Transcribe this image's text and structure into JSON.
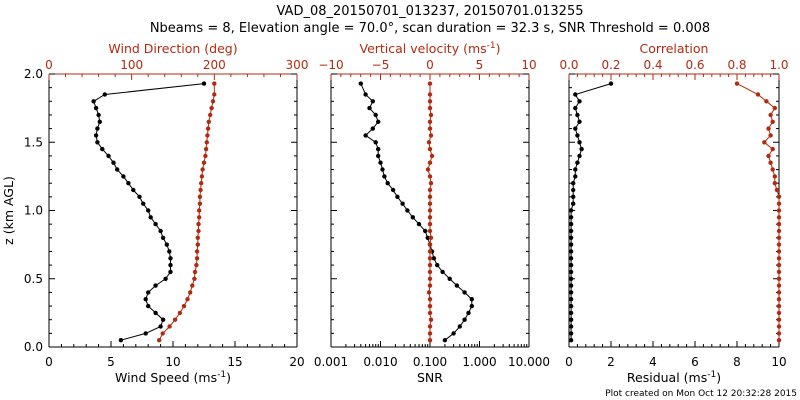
{
  "title_lines": [
    "VAD_08_20150701_013237, 20150701.013255",
    "Nbeams = 8, Elevation angle = 70.0°, scan duration = 32.3 s, SNR Threshold = 0.008"
  ],
  "footer": "Plot created on Mon Oct 12 20:32:28 2015",
  "colors": {
    "black": "#000000",
    "red": "#b22a10"
  },
  "chart_data": [
    {
      "type": "line",
      "ylabel": "z (km AGL)",
      "ylim": [
        0,
        2.0
      ],
      "yticks": [
        "0.0",
        "0.5",
        "1.0",
        "1.5",
        "2.0"
      ],
      "bottom_axis": {
        "label": "Wind Speed (ms",
        "label_sup": "-1",
        "label_end": ")",
        "range": [
          0,
          20
        ],
        "ticks": [
          "0",
          "5",
          "10",
          "15",
          "20"
        ]
      },
      "top_axis": {
        "label": "Wind Direction (deg)",
        "range": [
          0,
          360
        ],
        "ticks": [
          "0",
          "100",
          "200",
          "300"
        ]
      },
      "series": [
        {
          "axis": "bottom",
          "color": "black",
          "z": [
            0.05,
            0.1,
            0.15,
            0.2,
            0.25,
            0.3,
            0.35,
            0.4,
            0.45,
            0.5,
            0.55,
            0.6,
            0.65,
            0.7,
            0.75,
            0.8,
            0.85,
            0.9,
            0.95,
            1.0,
            1.05,
            1.1,
            1.15,
            1.2,
            1.25,
            1.3,
            1.35,
            1.4,
            1.45,
            1.5,
            1.55,
            1.6,
            1.65,
            1.7,
            1.75,
            1.8,
            1.85,
            1.93
          ],
          "values": [
            5.8,
            7.8,
            9.0,
            9.2,
            8.6,
            8.0,
            7.8,
            8.0,
            8.6,
            9.4,
            9.8,
            9.8,
            9.8,
            9.7,
            9.5,
            9.2,
            9.0,
            8.6,
            8.2,
            8.0,
            7.6,
            7.3,
            6.8,
            6.4,
            6.0,
            5.5,
            5.2,
            4.8,
            4.3,
            3.9,
            3.8,
            3.9,
            4.1,
            4.0,
            3.8,
            3.6,
            4.5,
            12.5
          ]
        },
        {
          "axis": "top",
          "color": "red",
          "z": [
            0.05,
            0.1,
            0.15,
            0.2,
            0.25,
            0.3,
            0.35,
            0.4,
            0.45,
            0.5,
            0.55,
            0.6,
            0.65,
            0.7,
            0.75,
            0.8,
            0.85,
            0.9,
            0.95,
            1.0,
            1.05,
            1.1,
            1.15,
            1.2,
            1.25,
            1.3,
            1.35,
            1.4,
            1.45,
            1.5,
            1.55,
            1.6,
            1.65,
            1.7,
            1.75,
            1.8,
            1.85,
            1.93
          ],
          "values": [
            160,
            165,
            175,
            183,
            190,
            196,
            201,
            205,
            208,
            211,
            212,
            214,
            215,
            215,
            216,
            216,
            217,
            217,
            218,
            218,
            219,
            219,
            220,
            221,
            222,
            223,
            225,
            227,
            228,
            229,
            230,
            231,
            232,
            234,
            236,
            238,
            240,
            240
          ]
        }
      ]
    },
    {
      "type": "line",
      "ylim": [
        0,
        2.0
      ],
      "bottom_axis": {
        "label": "SNR",
        "scale": "log",
        "range": [
          0.001,
          10
        ],
        "ticks": [
          "0.001",
          "0.010",
          "0.100",
          "1.000",
          "10.000"
        ],
        "tick_values": [
          0.001,
          0.01,
          0.1,
          1,
          10
        ]
      },
      "top_axis": {
        "label": "Vertical velocity (ms",
        "label_sup": "-1",
        "label_end": ")",
        "range": [
          -10,
          10
        ],
        "ticks": [
          "−10",
          "−5",
          "0",
          "5",
          "10"
        ],
        "tick_values": [
          -10,
          -5,
          0,
          5,
          10
        ]
      },
      "series": [
        {
          "axis": "bottom",
          "color": "black",
          "z": [
            0.05,
            0.1,
            0.15,
            0.2,
            0.25,
            0.3,
            0.35,
            0.4,
            0.45,
            0.5,
            0.55,
            0.6,
            0.65,
            0.7,
            0.75,
            0.8,
            0.85,
            0.9,
            0.95,
            1.0,
            1.05,
            1.1,
            1.15,
            1.2,
            1.25,
            1.3,
            1.35,
            1.4,
            1.45,
            1.5,
            1.55,
            1.6,
            1.65,
            1.7,
            1.75,
            1.8,
            1.85,
            1.93
          ],
          "values": [
            0.2,
            0.3,
            0.4,
            0.5,
            0.6,
            0.7,
            0.7,
            0.5,
            0.35,
            0.25,
            0.18,
            0.14,
            0.12,
            0.11,
            0.1,
            0.09,
            0.08,
            0.06,
            0.045,
            0.035,
            0.028,
            0.022,
            0.018,
            0.014,
            0.012,
            0.011,
            0.01,
            0.009,
            0.009,
            0.008,
            0.005,
            0.007,
            0.009,
            0.008,
            0.006,
            0.007,
            0.005,
            0.004
          ]
        },
        {
          "axis": "top",
          "color": "red",
          "z": [
            0.05,
            0.1,
            0.15,
            0.2,
            0.25,
            0.3,
            0.35,
            0.4,
            0.45,
            0.5,
            0.55,
            0.6,
            0.65,
            0.7,
            0.75,
            0.8,
            0.85,
            0.9,
            0.95,
            1.0,
            1.05,
            1.1,
            1.15,
            1.2,
            1.25,
            1.3,
            1.35,
            1.4,
            1.45,
            1.5,
            1.55,
            1.6,
            1.65,
            1.7,
            1.75,
            1.8,
            1.85,
            1.93
          ],
          "values": [
            0,
            0,
            0,
            0.1,
            0,
            0,
            0,
            -0.1,
            0,
            0,
            0,
            0,
            0,
            0,
            0,
            0.1,
            0,
            0,
            0,
            0,
            0,
            0,
            0,
            0.1,
            0,
            -0.2,
            0,
            0.2,
            0,
            -0.1,
            0.1,
            0,
            0,
            0.1,
            0,
            0,
            0,
            0
          ]
        }
      ]
    },
    {
      "type": "line",
      "ylim": [
        0,
        2.0
      ],
      "bottom_axis": {
        "label": "Residual (ms",
        "label_sup": "-1",
        "label_end": ")",
        "range": [
          0,
          10
        ],
        "ticks": [
          "0",
          "2",
          "4",
          "6",
          "8",
          "10"
        ]
      },
      "top_axis": {
        "label": "Correlation",
        "range": [
          0,
          1.0
        ],
        "ticks": [
          "0.0",
          "0.2",
          "0.4",
          "0.6",
          "0.8",
          "1.0"
        ]
      },
      "series": [
        {
          "axis": "bottom",
          "color": "black",
          "z": [
            0.05,
            0.1,
            0.15,
            0.2,
            0.25,
            0.3,
            0.35,
            0.4,
            0.45,
            0.5,
            0.55,
            0.6,
            0.65,
            0.7,
            0.75,
            0.8,
            0.85,
            0.9,
            0.95,
            1.0,
            1.05,
            1.1,
            1.15,
            1.2,
            1.25,
            1.3,
            1.35,
            1.4,
            1.45,
            1.5,
            1.55,
            1.6,
            1.65,
            1.7,
            1.75,
            1.8,
            1.85,
            1.93
          ],
          "values": [
            0.1,
            0.1,
            0.1,
            0.1,
            0.1,
            0.1,
            0.1,
            0.1,
            0.1,
            0.1,
            0.1,
            0.1,
            0.1,
            0.1,
            0.1,
            0.1,
            0.1,
            0.1,
            0.1,
            0.1,
            0.2,
            0.2,
            0.2,
            0.2,
            0.3,
            0.3,
            0.4,
            0.5,
            0.6,
            0.5,
            0.4,
            0.3,
            0.5,
            0.4,
            0.3,
            0.5,
            0.3,
            2.0
          ]
        },
        {
          "axis": "top",
          "color": "red",
          "z": [
            0.05,
            0.1,
            0.15,
            0.2,
            0.25,
            0.3,
            0.35,
            0.4,
            0.45,
            0.5,
            0.55,
            0.6,
            0.65,
            0.7,
            0.75,
            0.8,
            0.85,
            0.9,
            0.95,
            1.0,
            1.05,
            1.1,
            1.15,
            1.2,
            1.25,
            1.3,
            1.35,
            1.4,
            1.45,
            1.5,
            1.55,
            1.6,
            1.65,
            1.7,
            1.75,
            1.8,
            1.85,
            1.93
          ],
          "values": [
            1.0,
            1.0,
            1.0,
            1.0,
            1.0,
            1.0,
            1.0,
            1.0,
            1.0,
            1.0,
            1.0,
            1.0,
            1.0,
            1.0,
            1.0,
            1.0,
            1.0,
            1.0,
            1.0,
            1.0,
            1.0,
            1.0,
            0.99,
            0.98,
            0.98,
            0.97,
            0.96,
            0.95,
            0.97,
            0.93,
            0.96,
            0.95,
            0.97,
            0.96,
            0.98,
            0.94,
            0.9,
            0.8
          ]
        }
      ]
    }
  ]
}
